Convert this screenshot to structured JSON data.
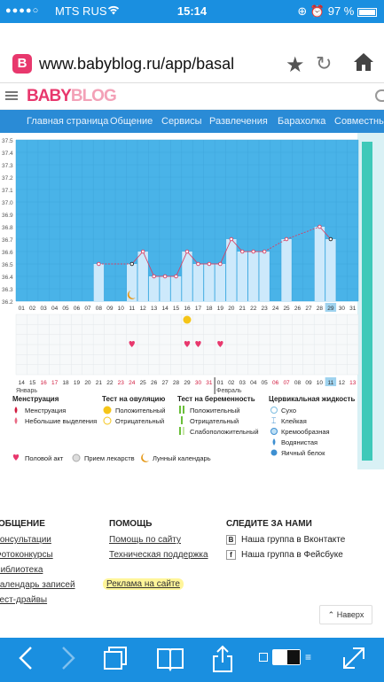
{
  "status": {
    "signal": "●●●●○",
    "carrier": "MTS RUS",
    "wifi_icon": "wifi-icon",
    "time": "15:14",
    "battery": "97 %"
  },
  "browser": {
    "url": "www.babyblog.ru/app/basal",
    "site_icon_letter": "B"
  },
  "site": {
    "logo_part1": "BABY",
    "logo_part2": "BLOG",
    "nav": [
      "Главная страница",
      "Общение",
      "Сервисы",
      "Развлечения",
      "Барахолка",
      "Совместные"
    ]
  },
  "chart_data": {
    "type": "line",
    "y_ticks": [
      "37.5",
      "37.4",
      "37.3",
      "37.2",
      "37.1",
      "37.0",
      "36.9",
      "36.8",
      "36.7",
      "36.6",
      "36.5",
      "36.4",
      "36.3",
      "36.2"
    ],
    "ylim": [
      36.2,
      37.5
    ],
    "x": [
      "01",
      "02",
      "03",
      "04",
      "05",
      "06",
      "07",
      "08",
      "09",
      "10",
      "11",
      "12",
      "13",
      "14",
      "15",
      "16",
      "17",
      "18",
      "19",
      "20",
      "21",
      "22",
      "23",
      "24",
      "25",
      "26",
      "27",
      "28",
      "29",
      "30",
      "31"
    ],
    "values": [
      null,
      null,
      null,
      null,
      null,
      null,
      null,
      36.5,
      null,
      null,
      36.5,
      36.6,
      36.4,
      36.4,
      36.4,
      36.6,
      36.5,
      36.5,
      36.5,
      36.7,
      36.6,
      36.6,
      36.6,
      null,
      36.7,
      null,
      null,
      36.8,
      36.7,
      null,
      null
    ],
    "highlight_index": 28,
    "moon_index": 10,
    "ovulation_positive_index": 15,
    "sex_indices": [
      10,
      15,
      16,
      18
    ],
    "cycle_days": [
      "14",
      "15",
      "16",
      "17",
      "18",
      "19",
      "20",
      "21",
      "22",
      "23",
      "24",
      "25",
      "26",
      "27",
      "28",
      "29",
      "30",
      "31",
      "01",
      "02",
      "03",
      "04",
      "05",
      "06",
      "07",
      "08",
      "09",
      "10",
      "11",
      "12",
      "13"
    ],
    "cycle_red_indices": [
      2,
      3,
      9,
      10,
      16,
      17,
      23,
      24,
      30
    ],
    "cycle_highlight_index": 28,
    "month1": "Январь",
    "month2": "Февраль",
    "month2_index": 18
  },
  "legend": {
    "menstruation": {
      "title": "Менструация",
      "items": [
        "Менструация",
        "Небольшие выделения"
      ]
    },
    "ovulation": {
      "title": "Тест на овуляцию",
      "items": [
        "Положительный",
        "Отрицательный"
      ]
    },
    "pregnancy": {
      "title": "Тест на беременность",
      "items": [
        "Положительный",
        "Отрицательный",
        "Слабоположительный"
      ]
    },
    "cervical": {
      "title": "Цервикальная жидкость",
      "items": [
        "Сухо",
        "Клейкая",
        "Кремообразная",
        "Водянистая",
        "Яичный белок"
      ]
    },
    "bottom": [
      "Половой акт",
      "Прием лекарств",
      "Лунный календарь"
    ]
  },
  "footer": {
    "col1": {
      "title": "ОБЩЕНИЕ",
      "links": [
        "Консультации",
        "Фотоконкурсы",
        "Библиотека",
        "Календарь записей",
        "Тест-драйвы"
      ]
    },
    "col2": {
      "title": "ПОМОЩЬ",
      "links": [
        "Помощь по сайту",
        "Техническая поддержка",
        "Реклама на сайте"
      ]
    },
    "col3": {
      "title": "СЛЕДИТЕ ЗА НАМИ",
      "links": [
        "Наша группа в Вконтакте",
        "Наша группа в Фейсбуке"
      ],
      "badges": [
        "В",
        "f"
      ]
    },
    "back_to_top": "Наверх"
  },
  "colors": {
    "chart_bg": "#49b3e8",
    "bar_fill": "#cde9fb",
    "line": "#d64064",
    "status_blue": "#1a8fe0",
    "nav_blue": "#2a8bd6",
    "sex_pink": "#e8386d",
    "ovulation_yellow": "#f5c518"
  }
}
